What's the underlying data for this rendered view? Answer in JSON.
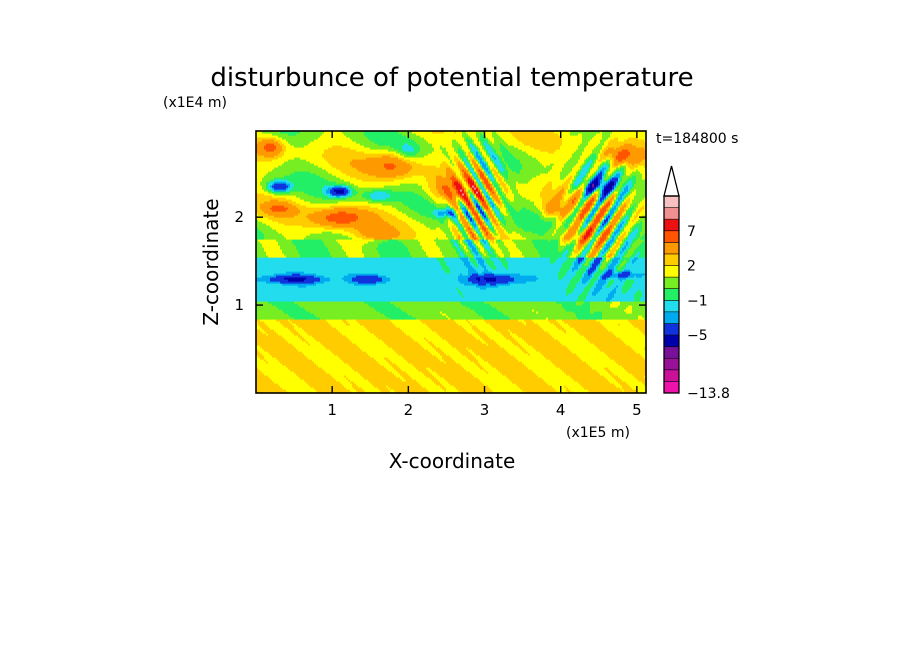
{
  "chart_data": {
    "type": "heatmap",
    "title": "disturbunce of potential temperature",
    "xlabel": "X-coordinate",
    "ylabel": "Z-coordinate",
    "x_unit": "(x1E5 m)",
    "y_unit": "(x1E4 m)",
    "time_label": "t=184800 s",
    "xlim": [
      0,
      5.12
    ],
    "ylim": [
      0,
      2.98
    ],
    "x_ticks": [
      "1",
      "2",
      "3",
      "4",
      "5"
    ],
    "y_ticks": [
      "1",
      "2"
    ],
    "colorbar": {
      "tick_labels": [
        "7",
        "2",
        "−1",
        "−5",
        "−13.8"
      ],
      "min": -13.8,
      "levels": [
        -13.8,
        -11,
        -9,
        -7,
        -5,
        -3,
        -2,
        -1,
        0,
        1,
        2,
        3,
        5,
        7,
        9,
        11
      ],
      "colors": [
        "#ee11aa",
        "#cc1199",
        "#991199",
        "#771199",
        "#0000aa",
        "#1133dd",
        "#00aaee",
        "#22ddee",
        "#22ee66",
        "#77ee22",
        "#ffff00",
        "#ffcc00",
        "#ff9900",
        "#ff5500",
        "#ee1111",
        "#f09090",
        "#f8c0c0"
      ]
    }
  }
}
